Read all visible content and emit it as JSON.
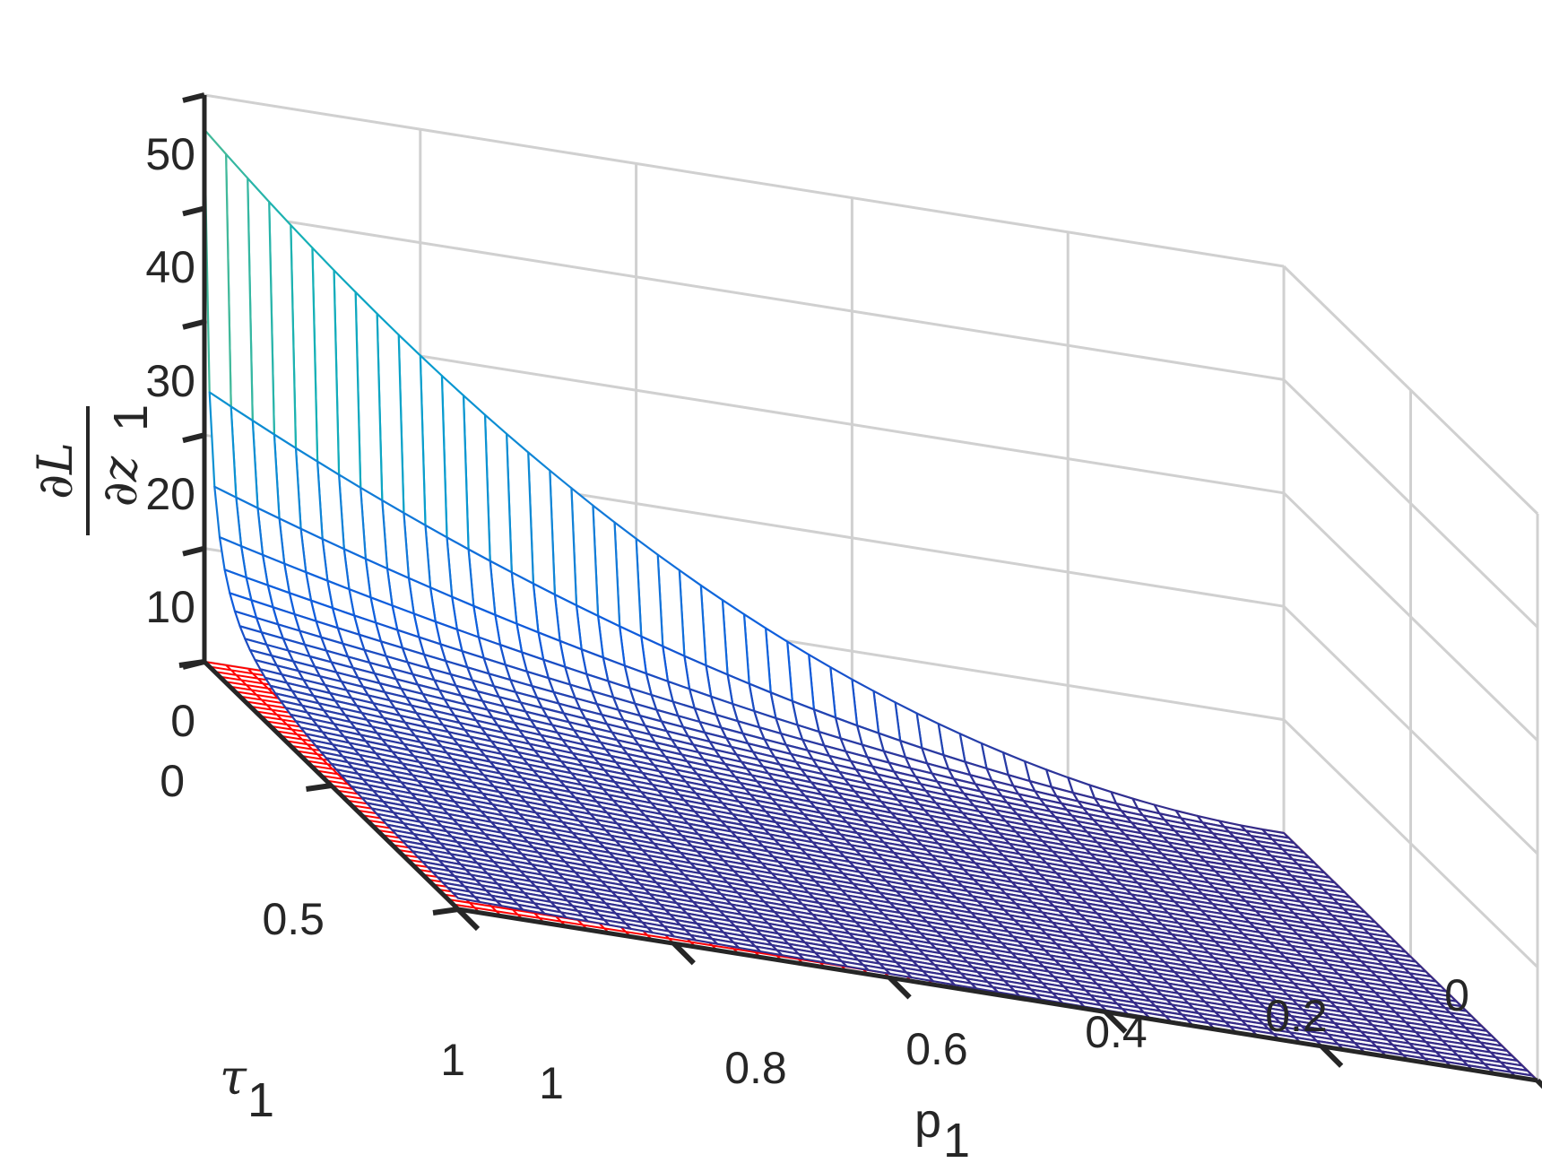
{
  "chart_data": {
    "type": "surface",
    "x_axis": {
      "label": "p",
      "label_subscript": "1",
      "range": [
        0,
        1
      ],
      "ticks": [
        0,
        0.2,
        0.4,
        0.6,
        0.8,
        1
      ],
      "tick_labels": [
        "0",
        "0.2",
        "0.4",
        "0.6",
        "0.8",
        "1"
      ]
    },
    "y_axis": {
      "label": "τ",
      "label_subscript": "1",
      "range": [
        0,
        1
      ],
      "ticks": [
        0,
        0.5,
        1
      ],
      "tick_labels": [
        "0",
        "0.5",
        "1"
      ]
    },
    "z_axis": {
      "label_numerator": "∂L",
      "label_denominator": "∂z",
      "label_subscript": "1",
      "range": [
        0,
        50
      ],
      "ticks": [
        0,
        10,
        20,
        30,
        40,
        50
      ],
      "tick_labels": [
        "0",
        "10",
        "20",
        "30",
        "40",
        "50"
      ]
    },
    "surfaces": [
      {
        "name": "",
        "colormap": "parula",
        "max_value": 47,
        "samples": [
          {
            "p": 1,
            "tau": 0,
            "z": 47
          },
          {
            "p": 1,
            "tau": 0.5,
            "z": 0.5
          },
          {
            "p": 0,
            "tau": 0,
            "z": 0
          },
          {
            "p": 0,
            "tau": 1,
            "z": 0
          }
        ],
        "grid_resolution": 50
      },
      {
        "name": "",
        "color": "#ff0000",
        "z": 0,
        "grid_resolution": 50
      }
    ],
    "grid": true,
    "view": "3d, viewed from high p / high tau corner"
  }
}
